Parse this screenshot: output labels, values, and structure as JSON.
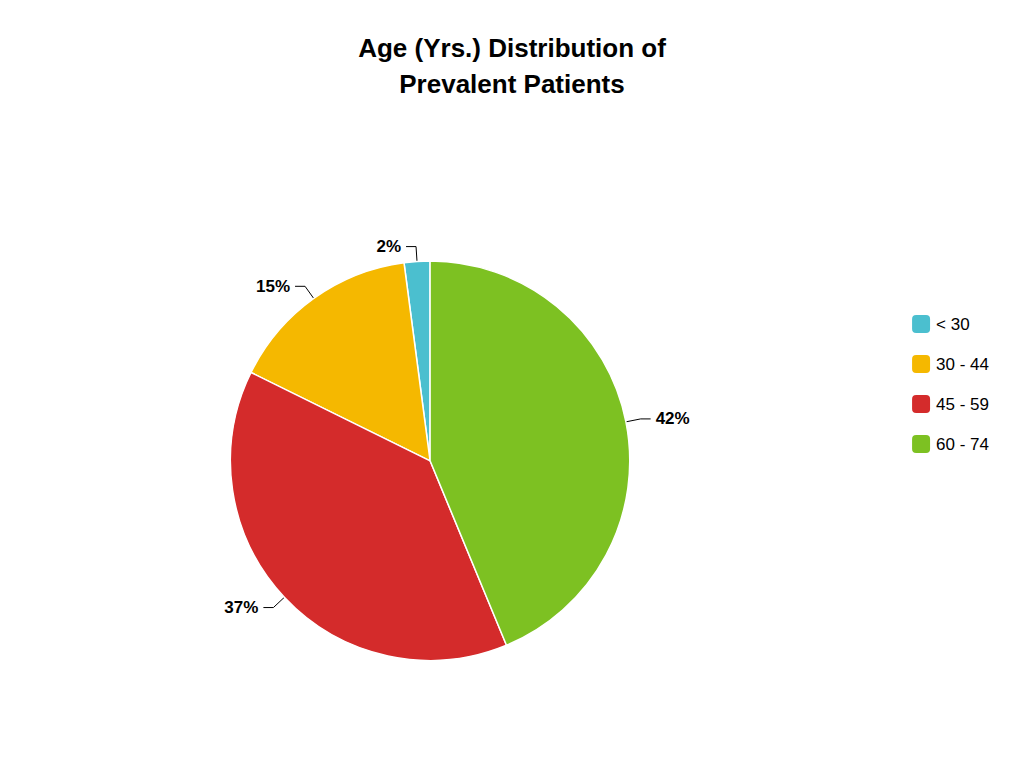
{
  "chart_data": {
    "type": "pie",
    "title": "Age (Yrs.) Distribution of\nPrevalent Patients",
    "categories": [
      "< 30",
      "30 - 44",
      "45 - 59",
      "60 - 74"
    ],
    "values": [
      2,
      15,
      37,
      42
    ],
    "value_labels": [
      "2%",
      "15%",
      "37%",
      "42%"
    ],
    "colors": [
      "#4BBFCF",
      "#F5B800",
      "#D42B2B",
      "#7DC122"
    ],
    "data_labels": true,
    "legend": "right"
  }
}
